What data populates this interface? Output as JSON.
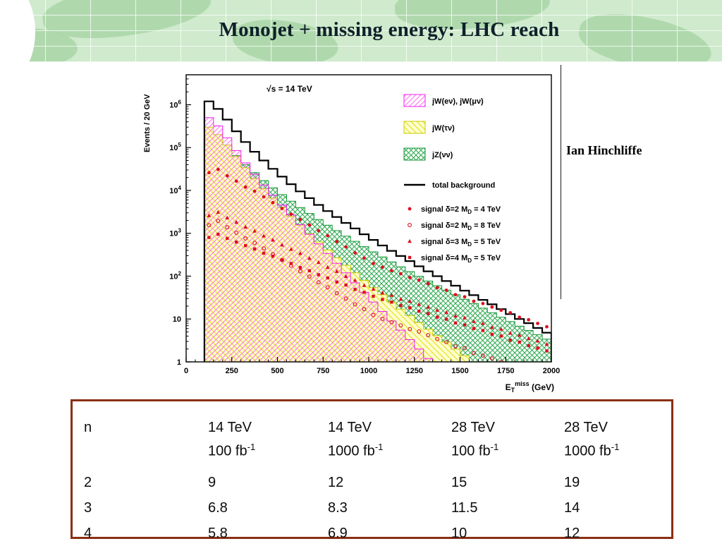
{
  "slide": {
    "title": "Monojet +  missing energy: LHC reach",
    "credit": "Ian Hinchliffe",
    "banner_color": "#cfeacd",
    "table_border_color": "#8a2f12"
  },
  "chart_data": {
    "type": "line",
    "subtype": "log-histogram with scatter signals",
    "annotation": "√s = 14 TeV",
    "ylabel": "Events / 20 GeV",
    "xlabel_parts": [
      "E",
      "T",
      "miss",
      " (GeV)"
    ],
    "xlim": [
      0,
      2000
    ],
    "ylim": [
      1,
      5000000
    ],
    "ylog": true,
    "grid": false,
    "legend_position": "top-right-inside",
    "x_ticks": [
      0,
      250,
      500,
      750,
      1000,
      1250,
      1500,
      1750,
      2000
    ],
    "y_ticks": [
      {
        "m": "1",
        "e": ""
      },
      {
        "m": "10",
        "e": ""
      },
      {
        "m": "10",
        "e": "2"
      },
      {
        "m": "10",
        "e": "3"
      },
      {
        "m": "10",
        "e": "4"
      },
      {
        "m": "10",
        "e": "5"
      },
      {
        "m": "10",
        "e": "6"
      }
    ],
    "bin_start": 100,
    "bin_width": 50,
    "backgrounds": [
      {
        "id": "jW-ev-mv",
        "label": "jW(eν), jW(μν)",
        "style": "hatch-pink",
        "color": "#ee22ee",
        "y": [
          500000,
          320000,
          170000,
          85000,
          44000,
          24000,
          13500,
          7800,
          4600,
          2700,
          1600,
          950,
          570,
          340,
          200,
          120,
          70,
          42,
          25,
          15,
          9,
          5.5,
          3.3,
          2,
          1.2,
          0.8,
          0.6,
          0.4,
          0.3,
          0.2,
          0.15,
          0.1,
          0.08,
          0.06,
          0.05,
          0.04,
          0.03,
          0.02
        ]
      },
      {
        "id": "jW-tv",
        "label": "jW(τν)",
        "style": "hatch-yellow",
        "color": "#c8c800",
        "y": [
          300000,
          200000,
          115000,
          62000,
          34000,
          19000,
          11000,
          6600,
          4000,
          2500,
          1550,
          980,
          630,
          410,
          270,
          180,
          120,
          80,
          54,
          37,
          25,
          17,
          12,
          8.3,
          5.8,
          4.1,
          2.9,
          2,
          1.4,
          1,
          0.7,
          0.5,
          0.4,
          0.3,
          0.25,
          0.2,
          0.15,
          0.1
        ]
      },
      {
        "id": "jZ-vv",
        "label": "jZ(νν)",
        "style": "cross-green",
        "color": "#169636",
        "y": [
          240000,
          180000,
          110000,
          65000,
          40000,
          26000,
          17000,
          11500,
          8000,
          5600,
          4000,
          2900,
          2100,
          1550,
          1150,
          860,
          650,
          490,
          370,
          280,
          215,
          165,
          128,
          99,
          77,
          60,
          47,
          37,
          29,
          23,
          18,
          14,
          11,
          8.7,
          6.8,
          5.4,
          4.3,
          3.4
        ]
      }
    ],
    "total": {
      "id": "total-background",
      "label": "total background",
      "color": "#000000",
      "y": [
        1200000,
        800000,
        450000,
        240000,
        135000,
        80000,
        50000,
        32000,
        21000,
        14000,
        9500,
        6600,
        4600,
        3300,
        2400,
        1750,
        1300,
        950,
        700,
        520,
        390,
        295,
        225,
        170,
        130,
        100,
        77,
        60,
        46,
        36,
        28,
        22,
        17,
        13,
        10,
        8,
        6.2,
        4.8
      ]
    },
    "signals": [
      {
        "id": "signal-d2-md4",
        "label_parts": [
          "signal δ=2  M",
          "D",
          " = 4 TeV"
        ],
        "marker": "circle",
        "color": "#e01020",
        "y": [
          26000,
          31000,
          22000,
          16500,
          12000,
          9600,
          7100,
          5200,
          3800,
          2800,
          2100,
          1560,
          1150,
          880,
          640,
          480,
          350,
          265,
          198,
          162,
          134,
          114,
          93,
          81,
          67,
          54,
          47,
          37,
          33,
          26,
          23,
          19,
          16,
          14,
          11,
          9.6,
          7.9,
          6.6
        ]
      },
      {
        "id": "signal-d2-md8",
        "label_parts": [
          "signal δ=2  M",
          "D",
          " = 8 TeV"
        ],
        "marker": "circle-open",
        "color": "#e01020",
        "y": [
          1550,
          1950,
          1380,
          1030,
          760,
          600,
          445,
          325,
          240,
          175,
          131,
          98,
          72,
          55,
          40,
          30,
          22,
          17,
          12.4,
          10.1,
          8.4,
          7.1,
          5.8,
          5.1,
          4.2,
          3.4,
          2.9,
          2.3,
          2.1,
          1.6,
          1.4,
          1.2,
          1.0,
          0.8,
          0.7,
          0.6,
          0.5,
          0.4
        ]
      },
      {
        "id": "signal-d3-md5",
        "label_parts": [
          "signal δ=3  M",
          "D",
          " = 5 TeV"
        ],
        "marker": "triangle",
        "color": "#e01020",
        "y": [
          2600,
          3100,
          2300,
          1820,
          1400,
          1130,
          870,
          700,
          535,
          425,
          340,
          262,
          210,
          161,
          130,
          99,
          80,
          61,
          50,
          41,
          36,
          29,
          26,
          22,
          19,
          16.2,
          14.3,
          11.8,
          10.7,
          8.8,
          7.9,
          6.4,
          5.8,
          4.7,
          4.2,
          3.5,
          3.1,
          2.6
        ]
      },
      {
        "id": "signal-d4-md5",
        "label_parts": [
          "signal δ=4  M",
          "D",
          " = 5 TeV"
        ],
        "marker": "square",
        "color": "#e01020",
        "y": [
          800,
          950,
          760,
          625,
          515,
          430,
          345,
          292,
          235,
          198,
          159,
          134,
          108,
          91,
          73,
          62,
          49,
          42,
          34,
          28.6,
          24.8,
          20.7,
          18.3,
          15.2,
          13.4,
          11.1,
          9.9,
          8.1,
          7.3,
          6.0,
          5.4,
          4.4,
          4.0,
          3.2,
          2.9,
          2.4,
          2.1,
          1.8
        ]
      }
    ]
  },
  "table": {
    "headers": [
      {
        "top": "n",
        "bottom": "",
        "sup": ""
      },
      {
        "top": "14 TeV",
        "bottom": "100 fb",
        "sup": "-1"
      },
      {
        "top": "14 TeV",
        "bottom": "1000 fb",
        "sup": "-1"
      },
      {
        "top": "28 TeV",
        "bottom": "100 fb",
        "sup": "-1"
      },
      {
        "top": "28 TeV",
        "bottom": "1000 fb",
        "sup": "-1"
      }
    ],
    "rows": [
      [
        "2",
        "9",
        "12",
        "15",
        "19"
      ],
      [
        "3",
        "6.8",
        "8.3",
        "11.5",
        "14"
      ],
      [
        "4",
        "5.8",
        "6.9",
        "10",
        "12"
      ]
    ]
  }
}
